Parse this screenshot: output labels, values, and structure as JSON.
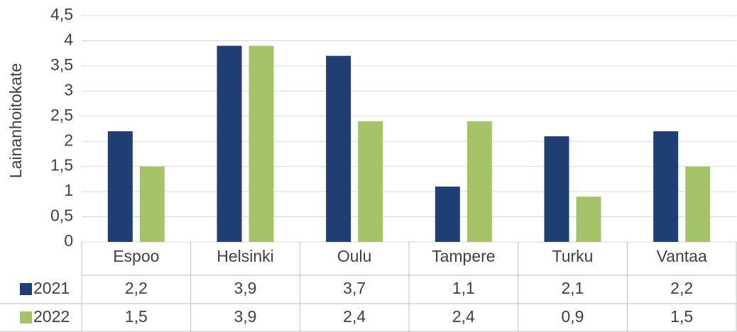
{
  "chart_data": {
    "type": "bar",
    "y_label": "Lainanhoitokate",
    "categories": [
      "Espoo",
      "Helsinki",
      "Oulu",
      "Tampere",
      "Turku",
      "Vantaa"
    ],
    "series": [
      {
        "name": "2021",
        "color": "#1f3e74",
        "values": [
          2.2,
          3.9,
          3.7,
          1.1,
          2.1,
          2.2
        ],
        "value_labels": [
          "2,2",
          "3,9",
          "3,7",
          "1,1",
          "2,1",
          "2,2"
        ]
      },
      {
        "name": "2022",
        "color": "#a5c46a",
        "values": [
          1.5,
          3.9,
          2.4,
          2.4,
          0.9,
          1.5
        ],
        "value_labels": [
          "1,5",
          "3,9",
          "2,4",
          "2,4",
          "0,9",
          "1,5"
        ]
      }
    ],
    "ylim": [
      0,
      4.5
    ],
    "yticks": [
      0,
      {
        "value": 0.5,
        "label": "0,5"
      },
      1,
      {
        "value": 1.5,
        "label": "1,5"
      },
      2,
      {
        "value": 2.5,
        "label": "2,5"
      },
      3,
      {
        "value": 3.5,
        "label": "3,5"
      },
      4,
      {
        "value": 4.5,
        "label": "4,5"
      }
    ],
    "grid": true
  }
}
